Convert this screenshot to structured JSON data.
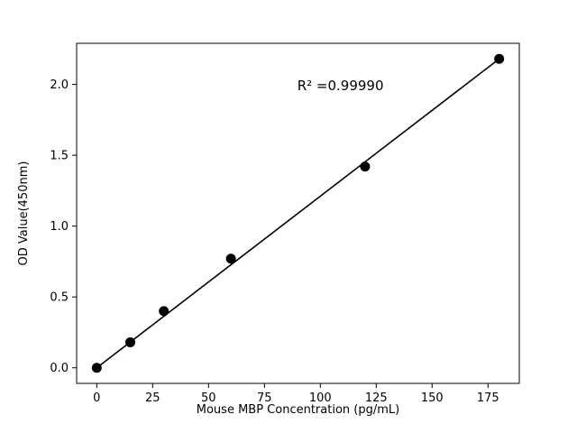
{
  "chart_data": {
    "type": "scatter",
    "title": "",
    "xlabel": "Mouse MBP Concentration (pg/mL)",
    "ylabel": "OD Value(450nm)",
    "x": [
      0,
      15,
      30,
      60,
      120,
      180
    ],
    "y": [
      0.0,
      0.18,
      0.4,
      0.77,
      1.42,
      2.18
    ],
    "fit_line": {
      "x1": 0,
      "y1": 0.0,
      "x2": 180,
      "y2": 2.18
    },
    "annotation": {
      "text": "R² =0.99990",
      "x": 109,
      "y": 1.96
    },
    "xlim": [
      -9,
      189
    ],
    "ylim": [
      -0.11,
      2.29
    ],
    "xticks": [
      0,
      25,
      50,
      75,
      100,
      125,
      150,
      175
    ],
    "yticks": [
      0.0,
      0.5,
      1.0,
      1.5,
      2.0
    ],
    "ytick_decimals": 1,
    "marker_color": "#000000",
    "line_color": "#000000",
    "axis_color": "#000000",
    "background": "#ffffff",
    "legend": "none",
    "grid": false
  }
}
